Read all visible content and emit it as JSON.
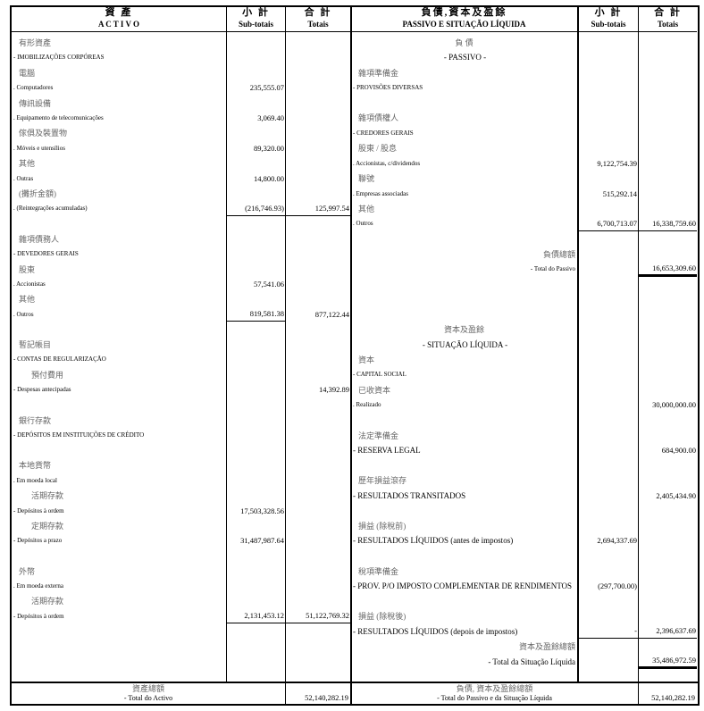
{
  "activo": {
    "header": {
      "title_zh": "資 產",
      "title_pt": "A C T I V O",
      "sub_zh": "小 計",
      "sub_pt": "Sub-totais",
      "tot_zh": "合 計",
      "tot_pt": "Totais"
    },
    "rows": [
      {
        "label": "有形資產",
        "kind": "zh"
      },
      {
        "label": "- IMOBILIZAÇÕES CORPÓREAS",
        "kind": "pt"
      },
      {
        "label": "電腦",
        "kind": "zh"
      },
      {
        "label": ". Computadores",
        "kind": "pt",
        "sub": "235,555.07"
      },
      {
        "label": "傳訊設備",
        "kind": "zh"
      },
      {
        "label": ". Equipamento de telecomunicações",
        "kind": "pt",
        "sub": "3,069.40"
      },
      {
        "label": "傢俱及裝置物",
        "kind": "zh"
      },
      {
        "label": ". Móveis e utensílios",
        "kind": "pt",
        "sub": "89,320.00"
      },
      {
        "label": "其他",
        "kind": "zh"
      },
      {
        "label": ". Outras",
        "kind": "pt",
        "sub": "14,800.00"
      },
      {
        "label": "(攤折金額)",
        "kind": "zh"
      },
      {
        "label": ". (Reintegrações acumuladas)",
        "kind": "pt",
        "sub": "(216,746.93)",
        "total": "125,997.54"
      },
      {
        "label": "",
        "kind": "blank"
      },
      {
        "label": "雜項債務人",
        "kind": "zh"
      },
      {
        "label": "- DEVEDORES GERAIS",
        "kind": "pt"
      },
      {
        "label": "股東",
        "kind": "zh"
      },
      {
        "label": ". Accionistas",
        "kind": "pt",
        "sub": "57,541.06"
      },
      {
        "label": "其他",
        "kind": "zh"
      },
      {
        "label": ". Outros",
        "kind": "pt",
        "sub": "819,581.38",
        "total": "877,122.44"
      },
      {
        "label": "",
        "kind": "blank"
      },
      {
        "label": "暫記帳目",
        "kind": "zh"
      },
      {
        "label": "- CONTAS DE REGULARIZAÇÃO",
        "kind": "pt"
      },
      {
        "label": "預付費用",
        "kind": "zh-indent"
      },
      {
        "label": "- Despesas antecipadas",
        "kind": "pt",
        "total": "14,392.89"
      },
      {
        "label": "",
        "kind": "blank"
      },
      {
        "label": "銀行存款",
        "kind": "zh"
      },
      {
        "label": "- DEPÓSITOS EM INSTITUIÇÕES DE CRÉDITO",
        "kind": "pt"
      },
      {
        "label": "",
        "kind": "blank"
      },
      {
        "label": "本地貨幣",
        "kind": "zh"
      },
      {
        "label": ". Em moeda local",
        "kind": "pt"
      },
      {
        "label": "活期存款",
        "kind": "zh-indent"
      },
      {
        "label": "- Depósitos à ordem",
        "kind": "pt",
        "sub": "17,503,328.56"
      },
      {
        "label": "定期存款",
        "kind": "zh-indent"
      },
      {
        "label": "- Depósitos a prazo",
        "kind": "pt",
        "sub": "31,487,987.64"
      },
      {
        "label": "",
        "kind": "blank"
      },
      {
        "label": "外幣",
        "kind": "zh"
      },
      {
        "label": ". Em moeda externa",
        "kind": "pt"
      },
      {
        "label": "活期存款",
        "kind": "zh-indent"
      },
      {
        "label": "- Depósitos à ordem",
        "kind": "pt",
        "sub": "2,131,453.12",
        "total": "51,122,769.32"
      }
    ],
    "footer": {
      "label_zh": "資產總額",
      "label_pt": "- Total do Activo",
      "total": "52,140,282.19"
    }
  },
  "passivo": {
    "header": {
      "title_zh": "負債,資本及盈餘",
      "title_pt": "PASSIVO E SITUAÇÃO  LÍQUIDA",
      "sub_zh": "小 計",
      "sub_pt": "Sub-totais",
      "tot_zh": "合 計",
      "tot_pt": "Totais"
    },
    "rows": [
      {
        "label": "負  債",
        "kind": "head-zh"
      },
      {
        "label": "- PASSIVO -",
        "kind": "head"
      },
      {
        "label": "雜項準備金",
        "kind": "zh"
      },
      {
        "label": "- PROVISÕES DIVERSAS",
        "kind": "pt"
      },
      {
        "label": "",
        "kind": "blank"
      },
      {
        "label": "雜項債權人",
        "kind": "zh"
      },
      {
        "label": "- CREDORES GERAIS",
        "kind": "pt"
      },
      {
        "label": "股東 / 股息",
        "kind": "zh"
      },
      {
        "label": ". Accionistas, c/dividendos",
        "kind": "pt",
        "sub": "9,122,754.39"
      },
      {
        "label": "聯號",
        "kind": "zh"
      },
      {
        "label": ". Empresas associadas",
        "kind": "pt",
        "sub": "515,292.14"
      },
      {
        "label": "其他",
        "kind": "zh"
      },
      {
        "label": ". Outros",
        "kind": "pt",
        "sub": "6,700,713.07",
        "total": "16,338,759.60"
      },
      {
        "label": "",
        "kind": "blank"
      },
      {
        "label": "負債總額",
        "kind": "total-zh"
      },
      {
        "label": "- Total do Passivo",
        "kind": "total",
        "total": "16,653,309.60"
      },
      {
        "label": "",
        "kind": "blank"
      },
      {
        "label": "",
        "kind": "blank"
      },
      {
        "label": "",
        "kind": "blank"
      },
      {
        "label": "資本及盈餘",
        "kind": "head-zh"
      },
      {
        "label": "- SITUAÇÃO LÍQUIDA -",
        "kind": "head"
      },
      {
        "label": "資本",
        "kind": "zh"
      },
      {
        "label": "- CAPITAL SOCIAL",
        "kind": "pt"
      },
      {
        "label": "已收資本",
        "kind": "zh"
      },
      {
        "label": ". Realizado",
        "kind": "pt",
        "total": "30,000,000.00"
      },
      {
        "label": "",
        "kind": "blank"
      },
      {
        "label": "法定準備金",
        "kind": "zh"
      },
      {
        "label": "- RESERVA LEGAL",
        "kind": "pt-big",
        "total": "684,900.00"
      },
      {
        "label": "",
        "kind": "blank"
      },
      {
        "label": "歷年損益滾存",
        "kind": "zh"
      },
      {
        "label": "- RESULTADOS TRANSITADOS",
        "kind": "pt-big",
        "total": "2,405,434.90"
      },
      {
        "label": "",
        "kind": "blank"
      },
      {
        "label": "損益 (除稅前)",
        "kind": "zh"
      },
      {
        "label": "- RESULTADOS LÍQUIDOS (antes de impostos)",
        "kind": "pt-big",
        "sub": "2,694,337.69"
      },
      {
        "label": "",
        "kind": "blank"
      },
      {
        "label": "稅項準備金",
        "kind": "zh"
      },
      {
        "label": "- PROV. P/O IMPOSTO COMPLEMENTAR DE RENDIMENTOS",
        "kind": "pt-big",
        "sub": "(297,700.00)"
      },
      {
        "label": "",
        "kind": "blank"
      },
      {
        "label": "損益 (除稅後)",
        "kind": "zh"
      },
      {
        "label": "- RESULTADOS LÍQUIDOS (depois de impostos)",
        "kind": "pt-big",
        "sub": "-",
        "total": "2,396,637.69"
      },
      {
        "label": "資本及盈餘總額",
        "kind": "total-zh"
      },
      {
        "label": "- Total da Situação Líquida",
        "kind": "total-big",
        "total": "35,486,972.59"
      }
    ],
    "footer": {
      "label_zh": "負債, 資本及盈餘總額",
      "label_pt": "- Total do Passivo e da Situação Líquida",
      "total": "52,140,282.19"
    }
  }
}
